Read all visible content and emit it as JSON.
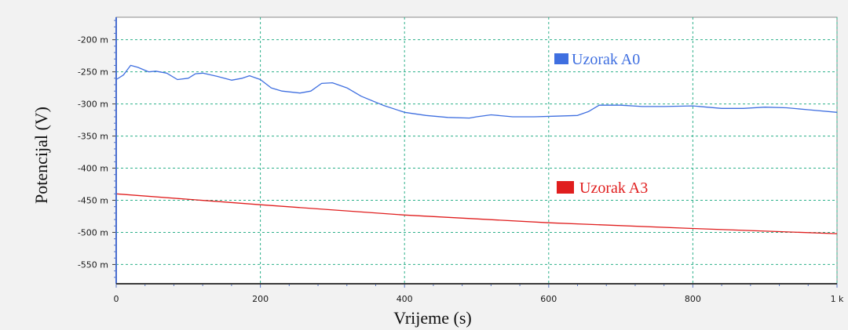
{
  "chart_data": {
    "type": "line",
    "title": "",
    "xlabel": "Vrijeme (s)",
    "ylabel": "Potencijal (V)",
    "xlim": [
      0,
      1000
    ],
    "ylim": [
      -580,
      -165
    ],
    "x_tick_values": [
      0,
      200,
      400,
      600,
      800,
      1000
    ],
    "x_tick_labels": [
      "0",
      "200",
      "400",
      "600",
      "800",
      "1 k"
    ],
    "y_tick_values": [
      -200,
      -250,
      -300,
      -350,
      -400,
      -450,
      -500,
      -550
    ],
    "y_tick_labels": [
      "-200 m",
      "-250 m",
      "-300 m",
      "-350 m",
      "-400 m",
      "-450 m",
      "-500 m",
      "-550 m"
    ],
    "grid": true,
    "legend_position": "inside",
    "colors": {
      "plot_background": "#ffffff",
      "grid": "#2db08a",
      "axis": "#3a3a3a",
      "frame_background": "#f2f2f2"
    },
    "series": [
      {
        "name": "Uzorak A0",
        "color": "#3f6fe0",
        "x": [
          0,
          10,
          20,
          30,
          45,
          55,
          70,
          85,
          100,
          110,
          120,
          140,
          160,
          175,
          185,
          200,
          215,
          230,
          255,
          270,
          285,
          300,
          320,
          340,
          370,
          400,
          430,
          460,
          490,
          500,
          520,
          550,
          580,
          610,
          640,
          655,
          670,
          700,
          730,
          760,
          800,
          840,
          870,
          900,
          930,
          960,
          1000
        ],
        "values": [
          -262,
          -255,
          -240,
          -243,
          -250,
          -249,
          -252,
          -262,
          -260,
          -253,
          -252,
          -257,
          -263,
          -260,
          -256,
          -262,
          -275,
          -280,
          -283,
          -280,
          -268,
          -267,
          -275,
          -288,
          -302,
          -313,
          -318,
          -321,
          -322,
          -320,
          -317,
          -320,
          -320,
          -319,
          -318,
          -312,
          -302,
          -302,
          -304,
          -304,
          -303,
          -307,
          -307,
          -305,
          -306,
          -309,
          -313
        ]
      },
      {
        "name": "Uzorak A3",
        "color": "#e01e1e",
        "x": [
          0,
          200,
          400,
          600,
          800,
          1000
        ],
        "values": [
          -440,
          -457,
          -473,
          -485,
          -494,
          -502
        ]
      }
    ]
  }
}
